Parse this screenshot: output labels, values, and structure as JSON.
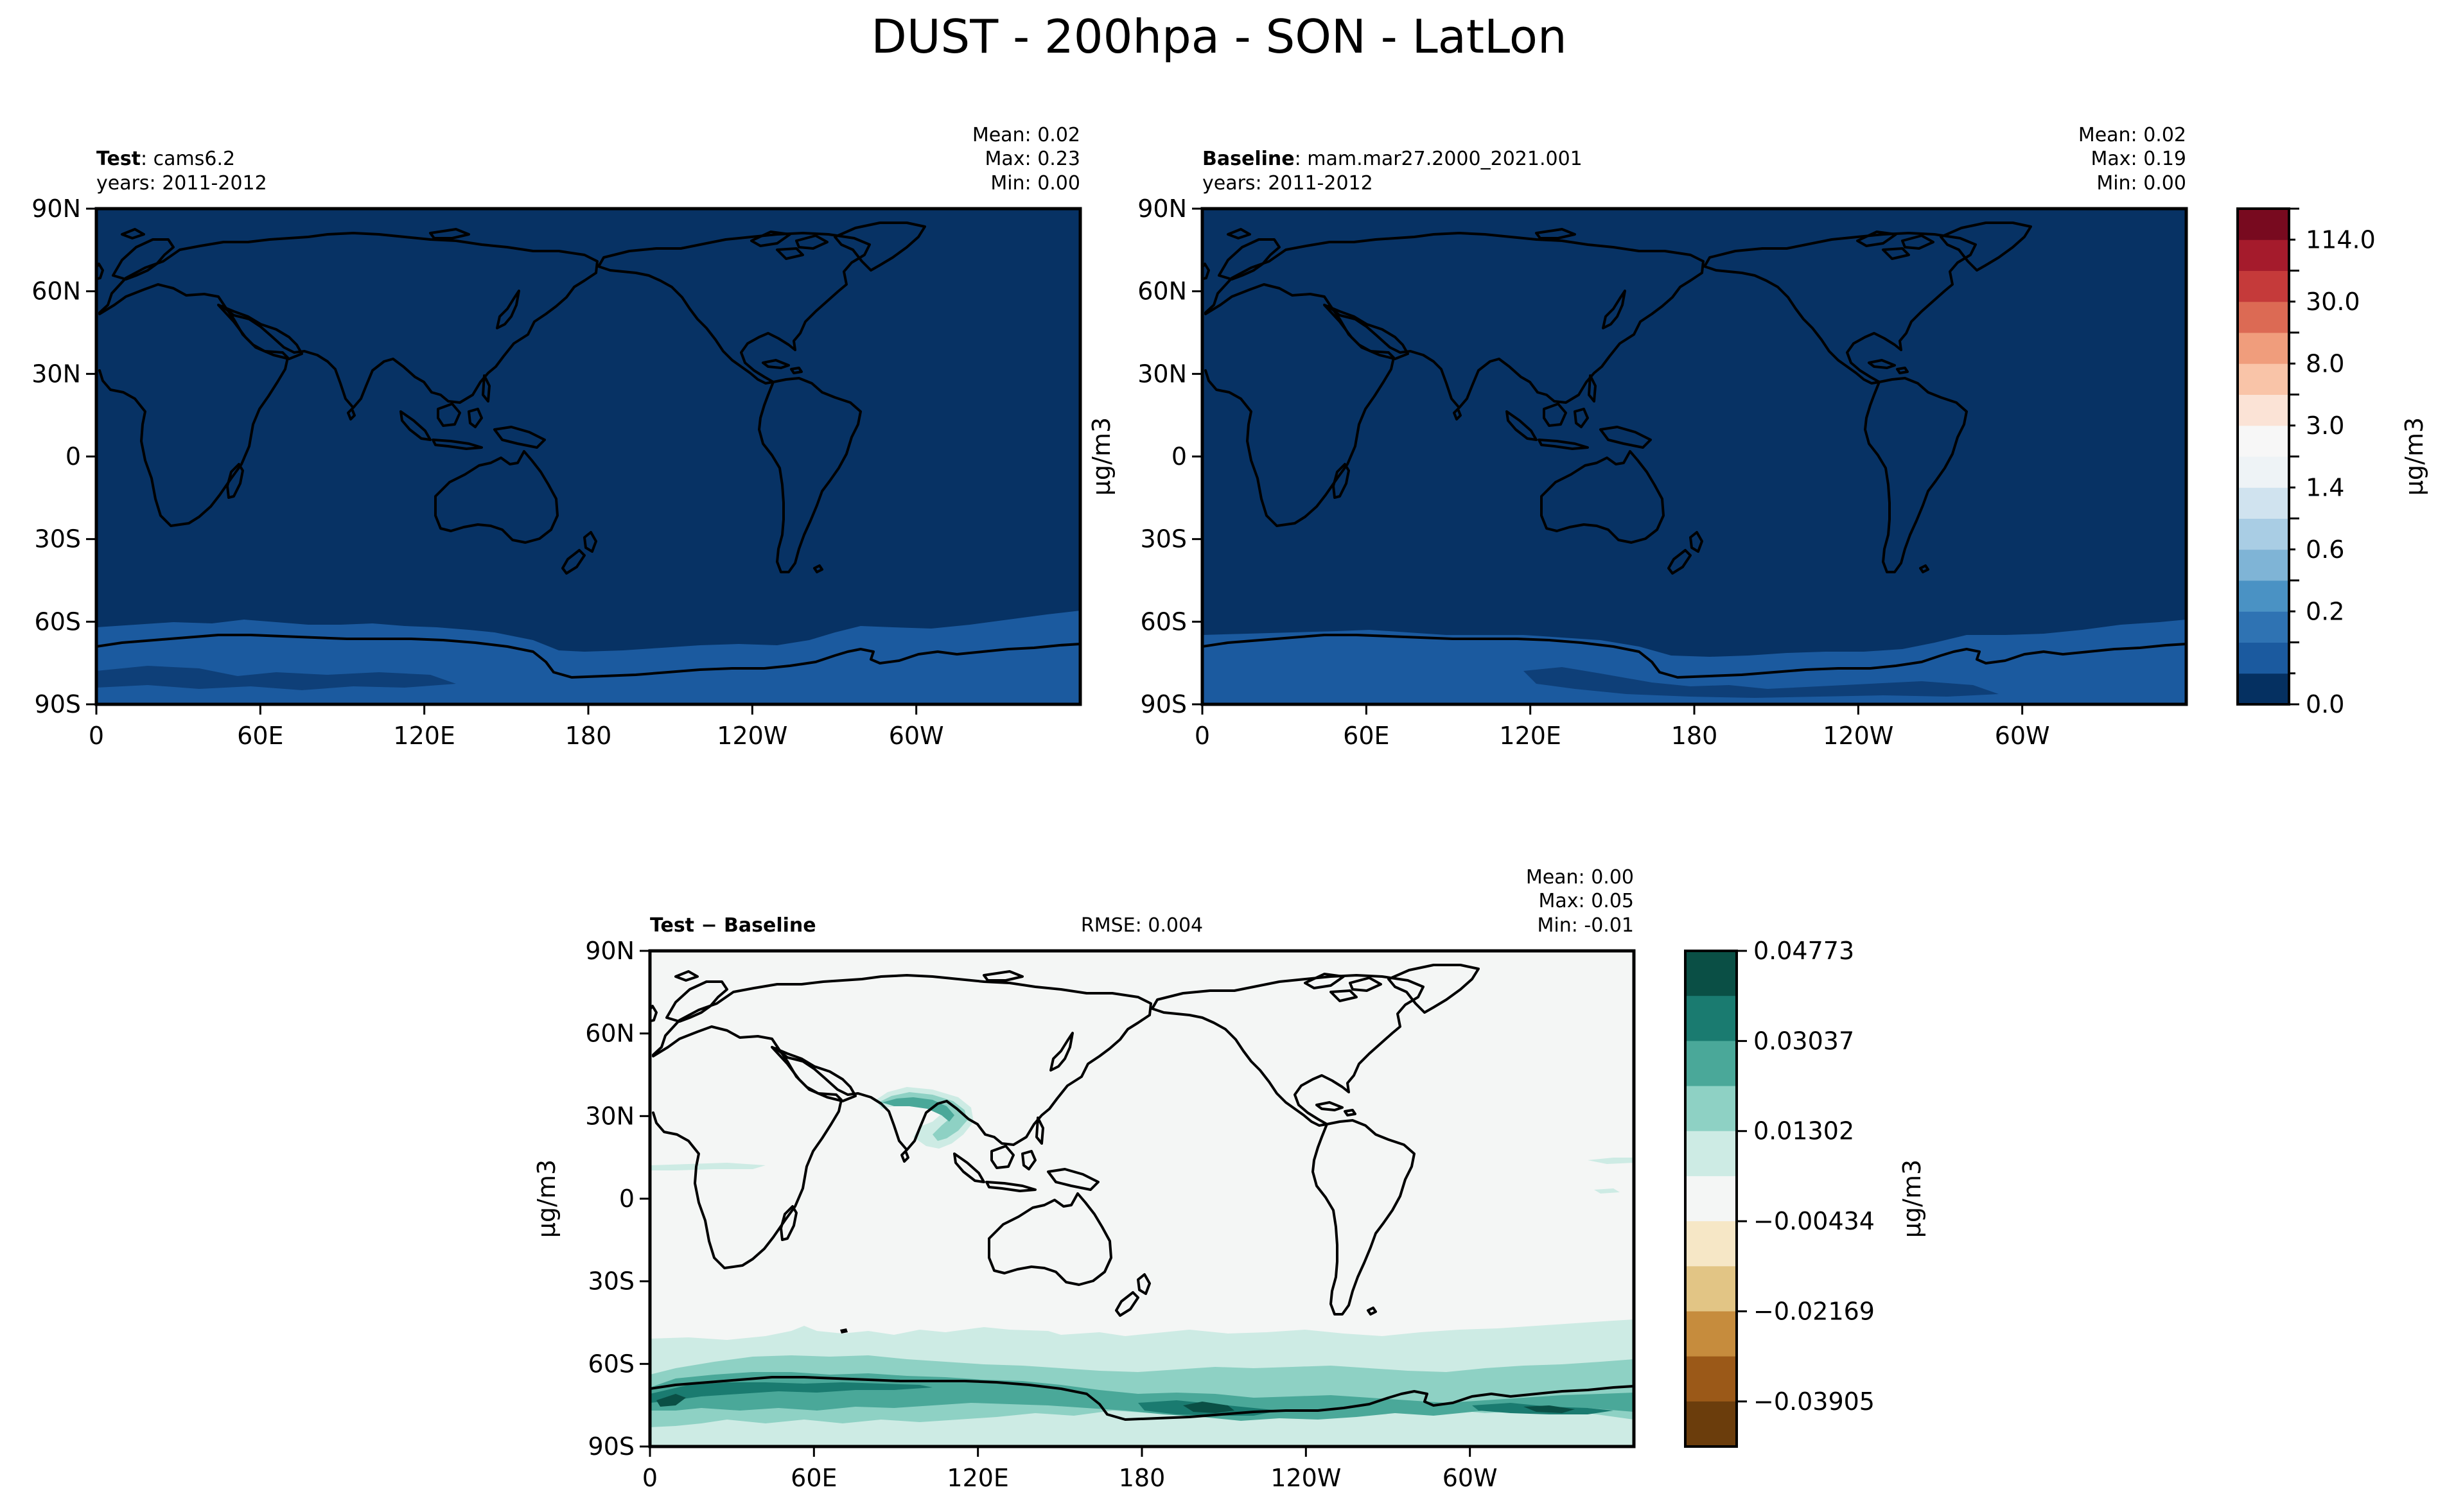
{
  "figure": {
    "title": "DUST - 200hpa - SON - LatLon",
    "ylabel": "μg/m3"
  },
  "chart_data": [
    {
      "type": "heatmap",
      "id": "test",
      "title": {
        "bold": "Test",
        "rest": ": cams6.2"
      },
      "years": "years: 2011-2012",
      "stats": {
        "mean": "Mean:  0.02",
        "max": "Max:  0.23",
        "min": "Min:  0.00"
      },
      "ylabel": "μg/m3",
      "x_ticks": [
        "0",
        "60E",
        "120E",
        "180",
        "120W",
        "60W"
      ],
      "y_ticks": [
        "90N",
        "60N",
        "30N",
        "0",
        "30S",
        "60S",
        "90S"
      ],
      "xlim": [
        0,
        360
      ],
      "ylim": [
        -90,
        90
      ],
      "colormap": "RdBu_r",
      "colorbar": {
        "label": "μg/m3",
        "tick_labels": [
          "114.0",
          "30.0",
          "8.0",
          "3.0",
          "1.4",
          "0.6",
          "0.2",
          "0.0"
        ],
        "levels": [
          0.0,
          0.1,
          0.2,
          0.4,
          0.6,
          0.8,
          1.0,
          1.4,
          2.0,
          3.0,
          5.0,
          8.0,
          14.0,
          30.0,
          50.0,
          114.0,
          200.0
        ],
        "colors": [
          "#053061",
          "#1b5a9f",
          "#2f73b3",
          "#4a92c4",
          "#7fb4d6",
          "#a9cde4",
          "#d0e3ef",
          "#eef3f6",
          "#f7f7f7",
          "#fbe3d6",
          "#f9c4a8",
          "#f09d7c",
          "#dc6a54",
          "#c53a3a",
          "#a51b2c",
          "#780a1f"
        ]
      },
      "field_colors": {
        "background": "#073264",
        "antarctic": "#1b5a9f"
      }
    },
    {
      "type": "heatmap",
      "id": "baseline",
      "title": {
        "bold": "Baseline",
        "rest": ": mam.mar27.2000_2021.001"
      },
      "years": "years: 2011-2012",
      "stats": {
        "mean": "Mean:  0.02",
        "max": "Max:  0.19",
        "min": "Min:  0.00"
      },
      "x_ticks": [
        "0",
        "60E",
        "120E",
        "180",
        "120W",
        "60W"
      ],
      "y_ticks": [
        "90N",
        "60N",
        "30N",
        "0",
        "30S",
        "60S",
        "90S"
      ],
      "xlim": [
        0,
        360
      ],
      "ylim": [
        -90,
        90
      ],
      "colormap": "RdBu_r",
      "field_colors": {
        "background": "#073264",
        "antarctic": "#1b5a9f"
      }
    },
    {
      "type": "heatmap",
      "id": "difference",
      "title": {
        "bold": "Test − Baseline",
        "rest": ""
      },
      "rmse": "RMSE: 0.004",
      "stats": {
        "mean": "Mean:  0.00",
        "max": "Max:  0.05",
        "min": "Min: -0.01"
      },
      "ylabel": "μg/m3",
      "x_ticks": [
        "0",
        "60E",
        "120E",
        "180",
        "120W",
        "60W"
      ],
      "y_ticks": [
        "90N",
        "60N",
        "30N",
        "0",
        "30S",
        "60S",
        "90S"
      ],
      "xlim": [
        0,
        360
      ],
      "ylim": [
        -90,
        90
      ],
      "colormap": "BrBG",
      "colorbar": {
        "label": "μg/m3",
        "tick_labels": [
          "0.04773",
          "0.03037",
          "0.01302",
          "−0.00434",
          "−0.02169",
          "−0.03905"
        ],
        "tick_values": [
          0.04773,
          0.03037,
          0.01302,
          -0.00434,
          -0.02169,
          -0.03905
        ],
        "colors": [
          "#0a4f45",
          "#1a7b70",
          "#4aa899",
          "#8ed1c4",
          "#cdebe4",
          "#f4f6f5",
          "#f6e7c6",
          "#e2c585",
          "#c68c3d",
          "#9b5918",
          "#6b3d0c"
        ],
        "range": [
          -0.04773,
          0.04773
        ]
      },
      "field_colors": {
        "background": "#f4f6f5",
        "light": "#cdebe4",
        "mid": "#8ed1c4",
        "strong": "#4aa899",
        "dark": "#1a7b70",
        "darkest": "#0a4f45"
      }
    }
  ]
}
